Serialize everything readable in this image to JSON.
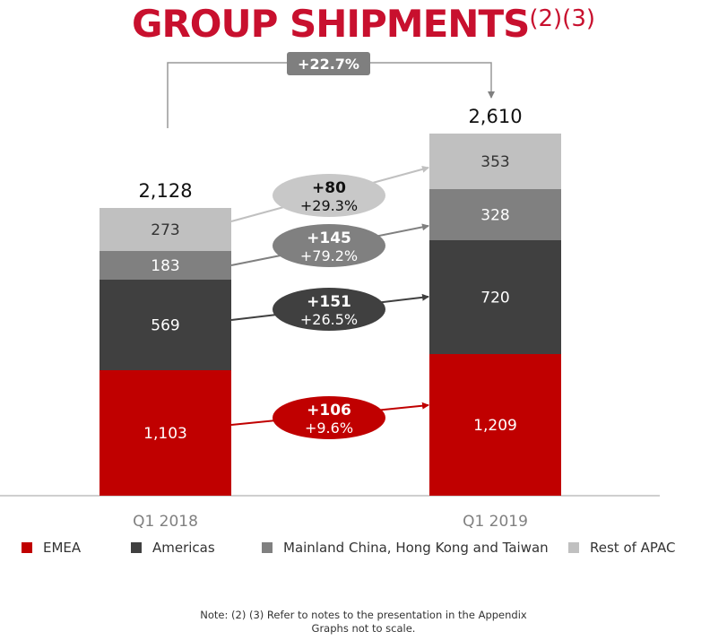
{
  "chart_data": {
    "type": "bar",
    "stacked": true,
    "title": "GROUP SHIPMENTS",
    "title_superscript": "(2)(3)",
    "categories": [
      "Q1 2018",
      "Q1 2019"
    ],
    "totals": [
      "2,128",
      "2,610"
    ],
    "total_values": [
      2128,
      2610
    ],
    "series": [
      {
        "name": "EMEA",
        "values": [
          1103,
          1209
        ],
        "labels": [
          "1,103",
          "1,209"
        ],
        "color": "#c00000",
        "label_color": "#ffffff"
      },
      {
        "name": "Americas",
        "values": [
          569,
          720
        ],
        "labels": [
          "569",
          "720"
        ],
        "color": "#404040",
        "label_color": "#ffffff"
      },
      {
        "name": "Mainland China, Hong Kong and Taiwan",
        "values": [
          183,
          328
        ],
        "labels": [
          "183",
          "328"
        ],
        "color": "#808080",
        "label_color": "#ffffff"
      },
      {
        "name": "Rest of APAC",
        "values": [
          273,
          353
        ],
        "labels": [
          "273",
          "353"
        ],
        "color": "#c0c0c0",
        "label_color": "#333333"
      }
    ],
    "growth": [
      {
        "series": "EMEA",
        "abs": "+106",
        "pct": "+9.6%",
        "fill": "#c00000",
        "text_color": "#ffffff",
        "arrow_color": "#c00000"
      },
      {
        "series": "Americas",
        "abs": "+151",
        "pct": "+26.5%",
        "fill": "#404040",
        "text_color": "#ffffff",
        "arrow_color": "#404040"
      },
      {
        "series": "Mainland China, Hong Kong and Taiwan",
        "abs": "+145",
        "pct": "+79.2%",
        "fill": "#808080",
        "text_color": "#ffffff",
        "arrow_color": "#808080"
      },
      {
        "series": "Rest of APAC",
        "abs": "+80",
        "pct": "+29.3%",
        "fill": "#c8c8c8",
        "text_color": "#111111",
        "arrow_color": "#c0c0c0"
      }
    ],
    "total_growth": "+22.7%",
    "legend_position": "bottom",
    "grid": false
  },
  "note": {
    "line1": "Note: (2) (3) Refer to notes to the presentation in the Appendix",
    "line2": "Graphs not to scale."
  }
}
